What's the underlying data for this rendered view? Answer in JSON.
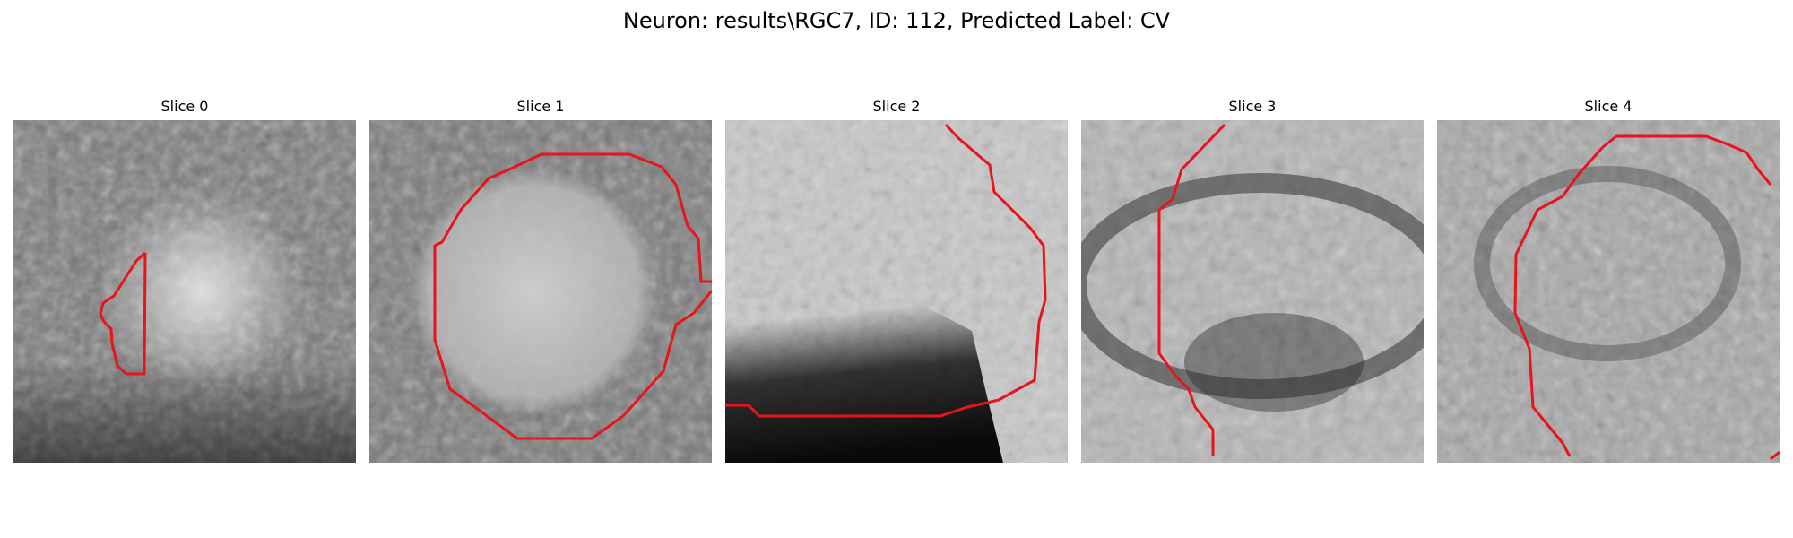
{
  "title": "Neuron: results\\RGC7, ID: 112, Predicted Label: CV",
  "panels": [
    {
      "label": "Slice 0"
    },
    {
      "label": "Slice 1"
    },
    {
      "label": "Slice 2"
    },
    {
      "label": "Slice 3"
    },
    {
      "label": "Slice 4"
    }
  ],
  "colors": {
    "contour": "#e8141c",
    "background": "#ffffff"
  }
}
